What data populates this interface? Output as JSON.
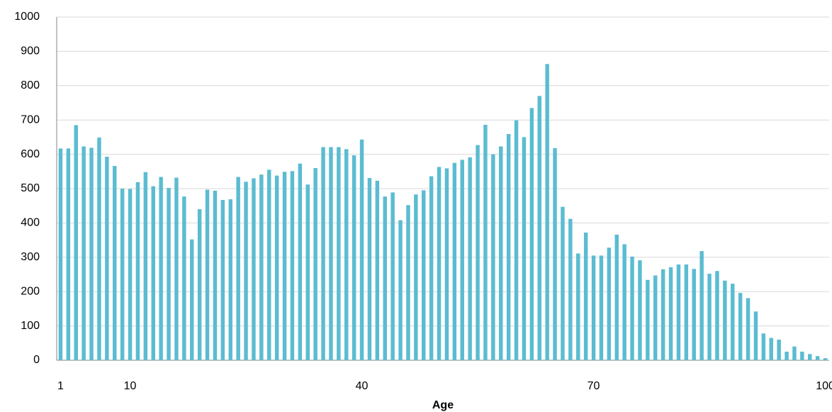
{
  "chart_data": {
    "type": "bar",
    "x_label": "Age",
    "categories": [
      "1",
      null,
      null,
      null,
      null,
      null,
      null,
      null,
      null,
      "10",
      null,
      null,
      null,
      null,
      null,
      null,
      null,
      null,
      null,
      null,
      null,
      null,
      null,
      null,
      null,
      null,
      null,
      null,
      null,
      null,
      null,
      null,
      null,
      null,
      null,
      null,
      null,
      null,
      null,
      "40",
      null,
      null,
      null,
      null,
      null,
      null,
      null,
      null,
      null,
      null,
      null,
      null,
      null,
      null,
      null,
      null,
      null,
      null,
      null,
      null,
      null,
      null,
      null,
      null,
      null,
      null,
      null,
      null,
      null,
      "70",
      null,
      null,
      null,
      null,
      null,
      null,
      null,
      null,
      null,
      null,
      null,
      null,
      null,
      null,
      null,
      null,
      null,
      null,
      null,
      null,
      null,
      null,
      null,
      null,
      null,
      null,
      null,
      null,
      null,
      "100"
    ],
    "values": [
      617,
      617,
      685,
      623,
      619,
      649,
      593,
      566,
      500,
      499,
      519,
      548,
      507,
      534,
      502,
      532,
      477,
      352,
      440,
      497,
      494,
      467,
      469,
      534,
      520,
      530,
      541,
      555,
      538,
      549,
      551,
      573,
      512,
      560,
      621,
      621,
      621,
      615,
      597,
      643,
      531,
      523,
      477,
      489,
      408,
      452,
      483,
      495,
      536,
      563,
      559,
      575,
      584,
      591,
      627,
      686,
      600,
      623,
      659,
      699,
      650,
      735,
      770,
      863,
      618,
      447,
      412,
      311,
      372,
      305,
      305,
      328,
      366,
      338,
      302,
      291,
      234,
      247,
      265,
      271,
      279,
      279,
      266,
      318,
      252,
      260,
      232,
      223,
      196,
      181,
      142,
      78,
      65,
      60,
      25,
      40,
      25,
      18,
      12,
      6
    ],
    "color": "#5bbcd1",
    "ylim": [
      0,
      1000
    ],
    "yticks": [
      0,
      100,
      200,
      300,
      400,
      500,
      600,
      700,
      800,
      900,
      1000
    ],
    "grid": true
  }
}
